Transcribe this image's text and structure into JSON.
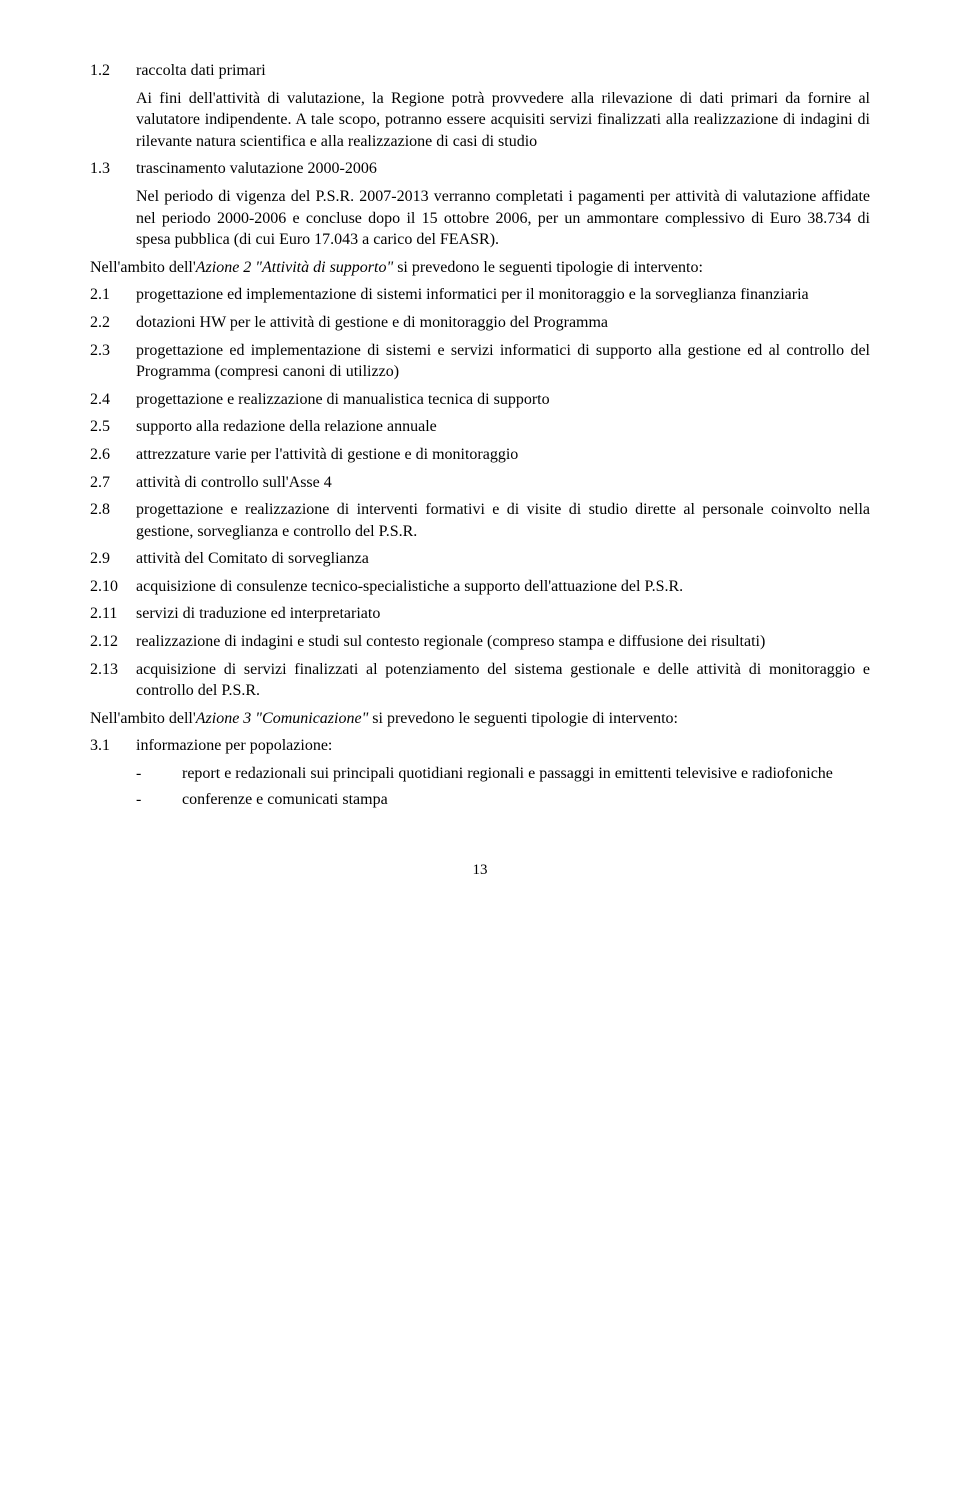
{
  "items": [
    {
      "num": "1.2",
      "text": "raccolta dati primari"
    },
    {
      "nested": true,
      "text": "Ai fini dell'attività di valutazione, la Regione potrà provvedere alla rilevazione di dati primari da fornire al valutatore indipendente. A tale scopo, potranno essere acquisiti servizi finalizzati alla realizzazione di indagini di rilevante natura scientifica e alla realizzazione di casi di studio"
    },
    {
      "num": "1.3",
      "text": "trascinamento valutazione 2000-2006"
    },
    {
      "nested": true,
      "text": "Nel periodo di vigenza del P.S.R. 2007-2013 verranno completati i pagamenti per attività di valutazione affidate nel periodo 2000-2006 e concluse dopo il 15 ottobre 2006, per un ammontare complessivo di Euro 38.734 di spesa pubblica (di cui Euro 17.043 a carico del FEASR)."
    }
  ],
  "intro2_pre": "Nell'ambito dell'",
  "intro2_em": "Azione 2 \"Attività di supporto\"",
  "intro2_post": " si prevedono le seguenti  tipologie di intervento:",
  "items2": [
    {
      "num": "2.1",
      "text": "progettazione ed implementazione di sistemi informatici per il monitoraggio e la sorveglianza finanziaria"
    },
    {
      "num": "2.2",
      "text": "dotazioni HW per le attività di gestione e di monitoraggio del Programma"
    },
    {
      "num": "2.3",
      "text": "progettazione ed implementazione di sistemi e servizi informatici di supporto alla gestione ed al controllo del Programma (compresi canoni di utilizzo)"
    },
    {
      "num": "2.4",
      "text": "progettazione e realizzazione di manualistica tecnica di supporto"
    },
    {
      "num": "2.5",
      "text": "supporto alla redazione della relazione annuale"
    },
    {
      "num": "2.6",
      "text": "attrezzature varie per l'attività di gestione e di monitoraggio"
    },
    {
      "num": "2.7",
      "text": "attività di controllo sull'Asse 4"
    },
    {
      "num": "2.8",
      "text": "progettazione e realizzazione di interventi formativi e di visite di studio dirette al personale coinvolto nella gestione, sorveglianza e controllo del P.S.R."
    },
    {
      "num": "2.9",
      "text": "attività del Comitato di sorveglianza"
    },
    {
      "num": "2.10",
      "text": "acquisizione di consulenze tecnico-specialistiche a supporto dell'attuazione del P.S.R."
    },
    {
      "num": "2.11",
      "text": "servizi di traduzione ed interpretariato"
    },
    {
      "num": "2.12",
      "text": "realizzazione di indagini e studi sul contesto regionale (compreso stampa e diffusione dei risultati)"
    },
    {
      "num": "2.13",
      "text": "acquisizione di servizi finalizzati al potenziamento del sistema gestionale e delle attività di monitoraggio e controllo del P.S.R."
    }
  ],
  "intro3_pre": "Nell'ambito dell'",
  "intro3_em": "Azione 3 \"Comunicazione\"",
  "intro3_post": " si prevedono le seguenti tipologie di intervento:",
  "items3": [
    {
      "num": "3.1",
      "text": "informazione per popolazione:"
    }
  ],
  "bullets3": [
    "report e redazionali sui principali quotidiani regionali e passaggi in emittenti televisive e radiofoniche",
    "conferenze e comunicati stampa"
  ],
  "page_number": "13"
}
